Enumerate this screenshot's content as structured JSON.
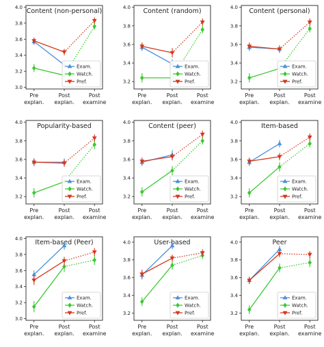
{
  "colors": {
    "exam": "#4a90d9",
    "watch": "#3cc832",
    "pref": "#d6361b",
    "axis": "#222222"
  },
  "legend_labels": [
    "Exam.",
    "Watch.",
    "Pref."
  ],
  "x_tick_labels": [
    [
      "Pre",
      "explan."
    ],
    [
      "Post",
      "explan."
    ],
    [
      "Post",
      "examine"
    ]
  ],
  "chart_data": [
    {
      "type": "line",
      "title": "Content (non-personal)",
      "x": [
        "Pre explan.",
        "Post explan.",
        "Post examine"
      ],
      "ylim": [
        2.98,
        4.02
      ],
      "yticks": [
        3.0,
        3.2,
        3.4,
        3.6,
        3.8,
        4.0
      ],
      "legend": "lower-right",
      "series": [
        {
          "name": "Exam.",
          "values": [
            3.57,
            3.28,
            null
          ],
          "err": [
            0.04,
            0.05,
            null
          ]
        },
        {
          "name": "Watch.",
          "values": [
            3.24,
            3.15,
            3.76
          ],
          "err": [
            0.05,
            0.05,
            0.04
          ]
        },
        {
          "name": "Pref.",
          "values": [
            3.58,
            3.44,
            3.83
          ],
          "err": [
            0.04,
            0.04,
            0.04
          ]
        }
      ]
    },
    {
      "type": "line",
      "title": "Content (random)",
      "x": [
        "Pre explan.",
        "Post explan.",
        "Post examine"
      ],
      "ylim": [
        3.12,
        4.02
      ],
      "yticks": [
        3.2,
        3.4,
        3.6,
        3.8,
        4.0
      ],
      "legend": "lower-right",
      "series": [
        {
          "name": "Exam.",
          "values": [
            3.57,
            3.39,
            null
          ],
          "err": [
            0.04,
            0.05,
            null
          ]
        },
        {
          "name": "Watch.",
          "values": [
            3.24,
            3.24,
            3.76
          ],
          "err": [
            0.05,
            0.05,
            0.04
          ]
        },
        {
          "name": "Pref.",
          "values": [
            3.58,
            3.51,
            3.84
          ],
          "err": [
            0.04,
            0.05,
            0.04
          ]
        }
      ]
    },
    {
      "type": "line",
      "title": "Content (personal)",
      "x": [
        "Pre explan.",
        "Post explan.",
        "Post examine"
      ],
      "ylim": [
        3.12,
        4.02
      ],
      "yticks": [
        3.2,
        3.4,
        3.6,
        3.8,
        4.0
      ],
      "legend": "lower-right",
      "series": [
        {
          "name": "Exam.",
          "values": [
            3.57,
            3.55,
            null
          ],
          "err": [
            0.04,
            0.04,
            null
          ]
        },
        {
          "name": "Watch.",
          "values": [
            3.24,
            3.34,
            3.77
          ],
          "err": [
            0.05,
            0.04,
            0.04
          ]
        },
        {
          "name": "Pref.",
          "values": [
            3.58,
            3.55,
            3.84
          ],
          "err": [
            0.04,
            0.04,
            0.04
          ]
        }
      ]
    },
    {
      "type": "line",
      "title": "Popularity-based",
      "x": [
        "Pre explan.",
        "Post explan.",
        "Post examine"
      ],
      "ylim": [
        3.12,
        4.02
      ],
      "yticks": [
        3.2,
        3.4,
        3.6,
        3.8,
        4.0
      ],
      "legend": "lower-right",
      "series": [
        {
          "name": "Exam.",
          "values": [
            3.57,
            3.57,
            null
          ],
          "err": [
            0.04,
            0.04,
            null
          ]
        },
        {
          "name": "Watch.",
          "values": [
            3.24,
            3.36,
            3.76
          ],
          "err": [
            0.05,
            0.04,
            0.05
          ]
        },
        {
          "name": "Pref.",
          "values": [
            3.57,
            3.56,
            3.83
          ],
          "err": [
            0.04,
            0.04,
            0.04
          ]
        }
      ]
    },
    {
      "type": "line",
      "title": "Content (peer)",
      "x": [
        "Pre explan.",
        "Post explan.",
        "Post examine"
      ],
      "ylim": [
        3.12,
        4.02
      ],
      "yticks": [
        3.2,
        3.4,
        3.6,
        3.8,
        4.0
      ],
      "legend": "lower-right",
      "series": [
        {
          "name": "Exam.",
          "values": [
            3.57,
            3.65,
            null
          ],
          "err": [
            0.04,
            0.05,
            null
          ]
        },
        {
          "name": "Watch.",
          "values": [
            3.25,
            3.48,
            3.8
          ],
          "err": [
            0.05,
            0.05,
            0.04
          ]
        },
        {
          "name": "Pref.",
          "values": [
            3.58,
            3.63,
            3.87
          ],
          "err": [
            0.04,
            0.04,
            0.04
          ]
        }
      ]
    },
    {
      "type": "line",
      "title": "Item-based",
      "x": [
        "Pre explan.",
        "Post explan.",
        "Post examine"
      ],
      "ylim": [
        3.12,
        4.02
      ],
      "yticks": [
        3.2,
        3.4,
        3.6,
        3.8,
        4.0
      ],
      "legend": "lower-right",
      "series": [
        {
          "name": "Exam.",
          "values": [
            3.57,
            3.77,
            null
          ],
          "err": [
            0.04,
            0.04,
            null
          ]
        },
        {
          "name": "Watch.",
          "values": [
            3.24,
            3.52,
            3.77
          ],
          "err": [
            0.05,
            0.05,
            0.04
          ]
        },
        {
          "name": "Pref.",
          "values": [
            3.58,
            3.63,
            3.84
          ],
          "err": [
            0.04,
            0.04,
            0.04
          ]
        }
      ]
    },
    {
      "type": "line",
      "title": "Item-based (Peer)",
      "x": [
        "Pre explan.",
        "Post explan.",
        "Post examine"
      ],
      "ylim": [
        2.98,
        4.02
      ],
      "yticks": [
        3.0,
        3.2,
        3.4,
        3.6,
        3.8,
        4.0
      ],
      "legend": "lower-right",
      "series": [
        {
          "name": "Exam.",
          "values": [
            3.55,
            3.91,
            null
          ],
          "err": [
            0.05,
            0.05,
            null
          ]
        },
        {
          "name": "Watch.",
          "values": [
            3.15,
            3.65,
            3.73
          ],
          "err": [
            0.07,
            0.07,
            0.06
          ]
        },
        {
          "name": "Pref.",
          "values": [
            3.48,
            3.72,
            3.83
          ],
          "err": [
            0.06,
            0.05,
            0.05
          ]
        }
      ]
    },
    {
      "type": "line",
      "title": "User-based",
      "x": [
        "Pre explan.",
        "Post explan.",
        "Post examine"
      ],
      "ylim": [
        3.12,
        4.06
      ],
      "yticks": [
        3.2,
        3.4,
        3.6,
        3.8,
        4.0
      ],
      "legend": "lower-right",
      "series": [
        {
          "name": "Exam.",
          "values": [
            3.63,
            3.96,
            null
          ],
          "err": [
            0.05,
            0.04,
            null
          ]
        },
        {
          "name": "Watch.",
          "values": [
            3.33,
            3.74,
            3.85
          ],
          "err": [
            0.05,
            0.05,
            0.04
          ]
        },
        {
          "name": "Pref.",
          "values": [
            3.64,
            3.82,
            3.88
          ],
          "err": [
            0.05,
            0.04,
            0.04
          ]
        }
      ]
    },
    {
      "type": "line",
      "title": "Peer",
      "x": [
        "Pre explan.",
        "Post explan.",
        "Post examine"
      ],
      "ylim": [
        3.12,
        4.06
      ],
      "yticks": [
        3.2,
        3.4,
        3.6,
        3.8,
        4.0
      ],
      "legend": "lower-right",
      "series": [
        {
          "name": "Exam.",
          "values": [
            3.57,
            3.92,
            null
          ],
          "err": [
            0.04,
            0.04,
            null
          ]
        },
        {
          "name": "Watch.",
          "values": [
            3.24,
            3.71,
            3.77
          ],
          "err": [
            0.05,
            0.05,
            0.05
          ]
        },
        {
          "name": "Pref.",
          "values": [
            3.57,
            3.87,
            3.86
          ],
          "err": [
            0.04,
            0.04,
            0.04
          ]
        }
      ]
    }
  ]
}
